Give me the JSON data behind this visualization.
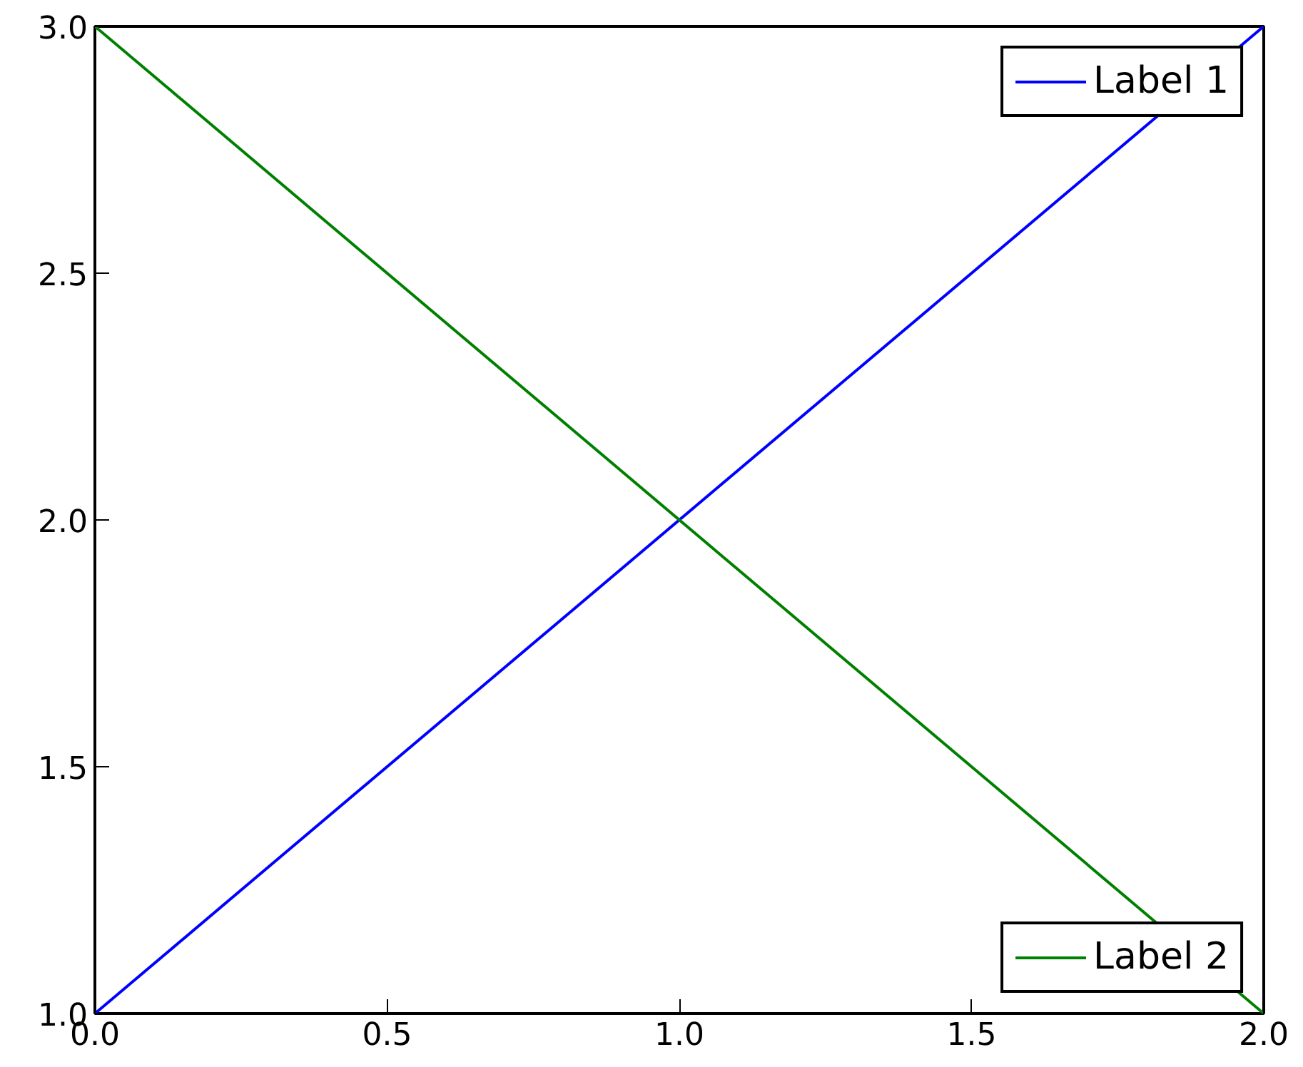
{
  "chart_data": {
    "type": "line",
    "x": [
      0,
      2
    ],
    "series": [
      {
        "name": "Label 1",
        "color": "#0000ff",
        "values": [
          1,
          3
        ]
      },
      {
        "name": "Label 2",
        "color": "#008000",
        "values": [
          3,
          1
        ]
      }
    ],
    "xlim": [
      0,
      2
    ],
    "ylim": [
      1,
      3
    ],
    "xticks": [
      {
        "value": 0,
        "label": "0.0"
      },
      0.5,
      {
        "value": 1,
        "label": "1.0"
      },
      1.5,
      {
        "value": 2,
        "label": "2.0"
      }
    ],
    "yticks": [
      {
        "value": 1,
        "label": "1.0"
      },
      1.5,
      {
        "value": 2,
        "label": "2.0"
      },
      2.5,
      {
        "value": 3,
        "label": "3.0"
      }
    ],
    "legend": "right",
    "grid": false,
    "line_style": "solid"
  }
}
